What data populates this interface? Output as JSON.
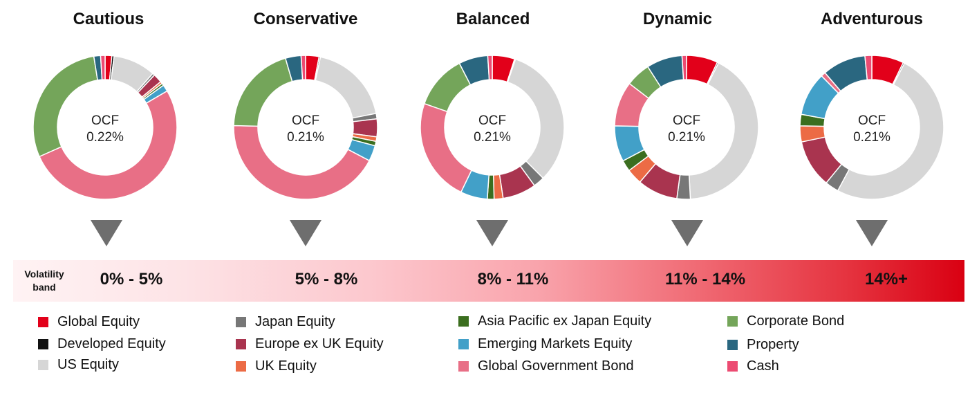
{
  "chart_data": {
    "type": "pie",
    "variant": "donut",
    "categories": [
      "Global Equity",
      "Developed Equity",
      "US Equity",
      "Japan Equity",
      "Europe ex UK Equity",
      "UK Equity",
      "Asia Pacific ex Japan Equity",
      "Emerging Markets Equity",
      "Global Government Bond",
      "Corporate Bond",
      "Property",
      "Cash"
    ],
    "colors": [
      "#e2001a",
      "#111111",
      "#d6d6d6",
      "#777777",
      "#a9344f",
      "#ec6b45",
      "#3b6e1f",
      "#42a0c8",
      "#e86f86",
      "#74a55a",
      "#2a6780",
      "#ec4b72"
    ],
    "charts": [
      {
        "title": "Cautious",
        "center_label": "OCF",
        "center_value": "0.22%",
        "values": [
          1.5,
          0.5,
          9.5,
          0.5,
          2.0,
          0.5,
          0.5,
          1.5,
          51.5,
          29.0,
          1.5,
          1.0
        ]
      },
      {
        "title": "Conservative",
        "center_label": "OCF",
        "center_value": "0.21%",
        "values": [
          3.0,
          0.3,
          18.5,
          1.2,
          4.0,
          1.0,
          1.0,
          3.5,
          42.5,
          20.0,
          3.5,
          1.0
        ]
      },
      {
        "title": "Balanced",
        "center_label": "OCF",
        "center_value": "0.21%",
        "values": [
          5.0,
          0.2,
          32.0,
          2.5,
          7.5,
          2.0,
          1.5,
          6.0,
          23.0,
          12.0,
          6.5,
          1.0
        ]
      },
      {
        "title": "Dynamic",
        "center_label": "OCF",
        "center_value": "0.21%",
        "values": [
          7.0,
          0.3,
          41.5,
          3.0,
          9.0,
          3.5,
          2.5,
          8.0,
          10.0,
          5.5,
          8.0,
          1.0
        ]
      },
      {
        "title": "Adventurous",
        "center_label": "OCF",
        "center_value": "0.21%",
        "values": [
          7.0,
          0.3,
          49.0,
          3.0,
          10.5,
          3.5,
          2.5,
          9.5,
          1.0,
          0.0,
          9.5,
          1.5
        ]
      }
    ]
  },
  "volatility": {
    "label_line1": "Volatility",
    "label_line2": "band",
    "bands": [
      "0% - 5%",
      "5% - 8%",
      "8% - 11%",
      "11% - 14%",
      "14%+"
    ]
  },
  "legend": [
    "Global Equity",
    "Developed Equity",
    "US Equity",
    "Japan Equity",
    "Europe ex UK Equity",
    "UK Equity",
    "Asia Pacific ex Japan Equity",
    "Emerging Markets Equity",
    "Global Government Bond",
    "Corporate Bond",
    "Property",
    "Cash"
  ]
}
